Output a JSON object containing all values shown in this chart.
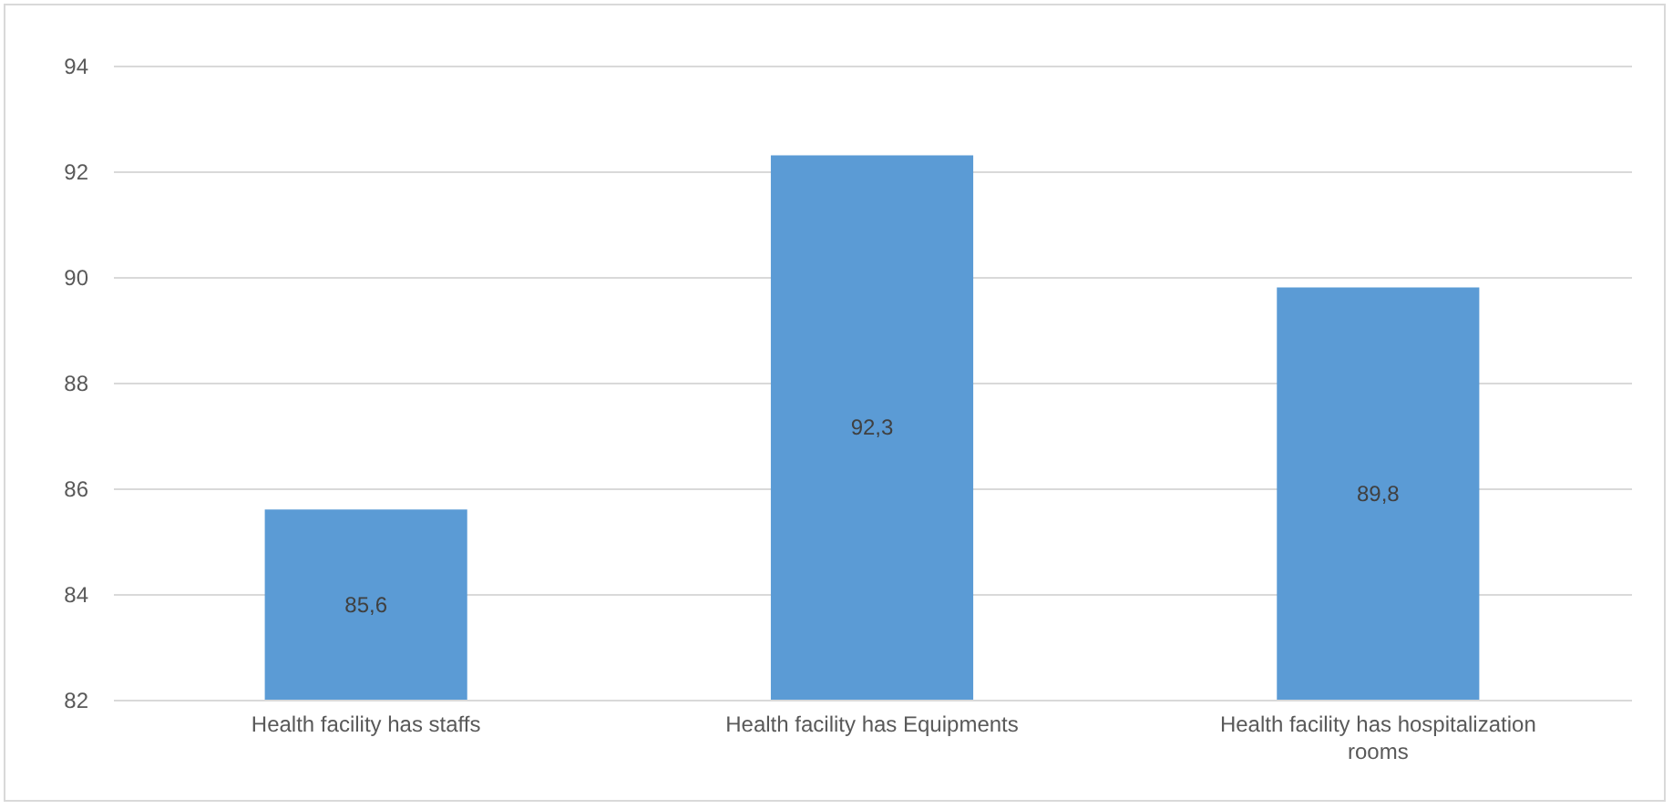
{
  "chart_data": {
    "type": "bar",
    "categories": [
      "Health facility has staffs",
      "Health facility has Equipments",
      "Health facility has hospitalization rooms"
    ],
    "values": [
      85.6,
      92.3,
      89.8
    ],
    "value_labels": [
      "85,6",
      "92,3",
      "89,8"
    ],
    "color": "#5b9bd5",
    "ylim": [
      82,
      94
    ],
    "yticks": [
      82,
      84,
      86,
      88,
      90,
      92,
      94
    ],
    "grid": "y"
  }
}
